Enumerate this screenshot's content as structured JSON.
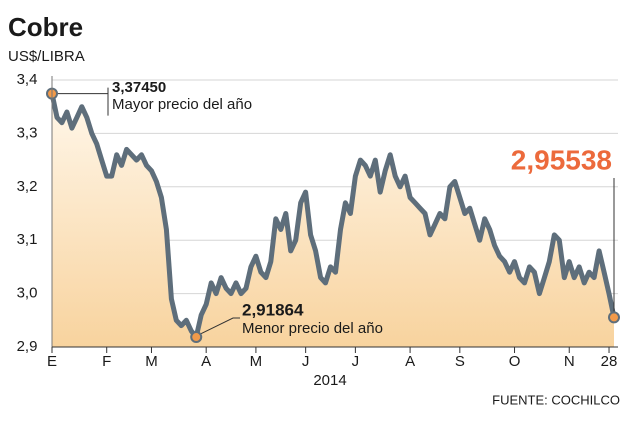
{
  "chart_data": {
    "type": "line",
    "title": "Cobre",
    "subtitle": "US$/LIBRA",
    "x_label": "2014",
    "source": "FUENTE: COCHILCO",
    "annotations": [
      "Mayor precio del año",
      "Menor precio del año"
    ],
    "categories": [
      "E",
      null,
      null,
      null,
      null,
      null,
      null,
      null,
      null,
      null,
      null,
      "F",
      null,
      null,
      null,
      null,
      null,
      null,
      null,
      null,
      "M",
      null,
      null,
      null,
      null,
      null,
      null,
      null,
      null,
      null,
      null,
      "A",
      null,
      null,
      null,
      null,
      null,
      null,
      null,
      null,
      null,
      "M",
      null,
      null,
      null,
      null,
      null,
      null,
      null,
      null,
      null,
      "J",
      null,
      null,
      null,
      null,
      null,
      null,
      null,
      null,
      null,
      "J",
      null,
      null,
      null,
      null,
      null,
      null,
      null,
      null,
      null,
      null,
      "A",
      null,
      null,
      null,
      null,
      null,
      null,
      null,
      null,
      null,
      "S",
      null,
      null,
      null,
      null,
      null,
      null,
      null,
      null,
      null,
      null,
      "O",
      null,
      null,
      null,
      null,
      null,
      null,
      null,
      null,
      null,
      null,
      "N",
      null,
      null,
      null,
      null,
      null,
      null,
      null,
      "28",
      null
    ],
    "series": [
      {
        "color": "#5e6e7b",
        "fill": "#f8d39e",
        "marker_color": "#f29a4a",
        "highlight_color": "#ec6a3c",
        "values": [
          3.3745,
          3.33,
          3.32,
          3.34,
          3.31,
          3.33,
          3.35,
          3.33,
          3.3,
          3.28,
          3.25,
          3.22,
          3.22,
          3.26,
          3.24,
          3.27,
          3.26,
          3.25,
          3.26,
          3.24,
          3.23,
          3.21,
          3.18,
          3.12,
          2.99,
          2.95,
          2.94,
          2.95,
          2.93,
          2.91864,
          2.96,
          2.98,
          3.02,
          3.0,
          3.03,
          3.01,
          3.0,
          3.02,
          3.0,
          3.01,
          3.05,
          3.07,
          3.04,
          3.03,
          3.06,
          3.14,
          3.12,
          3.15,
          3.08,
          3.1,
          3.17,
          3.19,
          3.11,
          3.08,
          3.03,
          3.02,
          3.05,
          3.04,
          3.12,
          3.17,
          3.15,
          3.22,
          3.25,
          3.24,
          3.22,
          3.25,
          3.19,
          3.23,
          3.26,
          3.22,
          3.2,
          3.22,
          3.18,
          3.17,
          3.16,
          3.15,
          3.11,
          3.13,
          3.15,
          3.14,
          3.2,
          3.21,
          3.18,
          3.15,
          3.16,
          3.13,
          3.1,
          3.14,
          3.12,
          3.09,
          3.07,
          3.06,
          3.04,
          3.06,
          3.03,
          3.02,
          3.05,
          3.04,
          3.0,
          3.03,
          3.06,
          3.11,
          3.1,
          3.03,
          3.06,
          3.03,
          3.05,
          3.02,
          3.04,
          3.03,
          3.08,
          3.04,
          3.0,
          2.95538
        ],
        "value_labels": [
          "3,37450",
          null,
          null,
          null,
          null,
          null,
          null,
          null,
          null,
          null,
          null,
          null,
          null,
          null,
          null,
          null,
          null,
          null,
          null,
          null,
          null,
          null,
          null,
          null,
          null,
          null,
          null,
          null,
          null,
          "2,91864",
          null,
          null,
          null,
          null,
          null,
          null,
          null,
          null,
          null,
          null,
          null,
          null,
          null,
          null,
          null,
          null,
          null,
          null,
          null,
          null,
          null,
          null,
          null,
          null,
          null,
          null,
          null,
          null,
          null,
          null,
          null,
          null,
          null,
          null,
          null,
          null,
          null,
          null,
          null,
          null,
          null,
          null,
          null,
          null,
          null,
          null,
          null,
          null,
          null,
          null,
          null,
          null,
          null,
          null,
          null,
          null,
          null,
          null,
          null,
          null,
          null,
          null,
          null,
          null,
          null,
          null,
          null,
          null,
          null,
          null,
          null,
          null,
          null,
          null,
          null,
          null,
          null,
          null,
          null,
          null,
          null,
          null,
          null,
          "2,95538"
        ]
      }
    ],
    "ylim": [
      2.9,
      3.4
    ],
    "yticks": [
      {
        "value": 2.9,
        "label": "2,9"
      },
      {
        "value": 3.0,
        "label": "3,0"
      },
      {
        "value": 3.1,
        "label": "3,1"
      },
      {
        "value": 3.2,
        "label": "3,2"
      },
      {
        "value": 3.3,
        "label": "3,3"
      },
      {
        "value": 3.4,
        "label": "3,4"
      }
    ],
    "grid": true
  }
}
